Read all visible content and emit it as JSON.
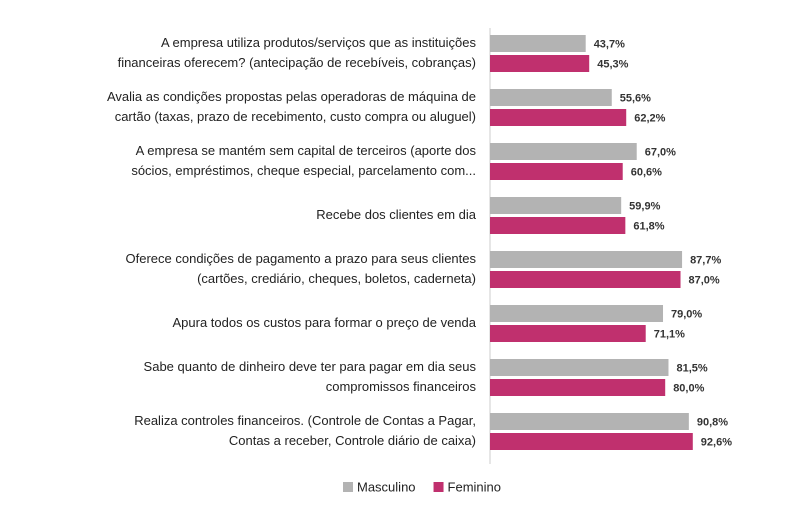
{
  "chart_data": {
    "type": "bar",
    "orientation": "horizontal",
    "categories": [
      [
        "A empresa utiliza produtos/serviços que as instituições",
        "financeiras oferecem? (antecipação de recebíveis, cobranças)"
      ],
      [
        "Avalia as condições propostas pelas operadoras de máquina de",
        "cartão (taxas, prazo de recebimento, custo compra ou aluguel)"
      ],
      [
        "A empresa se mantém sem capital de terceiros (aporte dos",
        "sócios, empréstimos, cheque especial, parcelamento com..."
      ],
      [
        "Recebe dos clientes em dia"
      ],
      [
        "Oferece condições de pagamento a prazo para seus clientes",
        "(cartões, crediário, cheques, boletos, caderneta)"
      ],
      [
        "Apura todos os custos para formar o preço de venda"
      ],
      [
        "Sabe quanto de dinheiro deve ter para pagar em dia seus",
        "compromissos financeiros"
      ],
      [
        "Realiza controles financeiros. (Controle de Contas a Pagar,",
        "Contas a receber, Controle diário de caixa)"
      ]
    ],
    "series": [
      {
        "name": "Masculino",
        "color": "#b3b3b3",
        "values": [
          43.7,
          55.6,
          67.0,
          59.9,
          87.7,
          79.0,
          81.5,
          90.8
        ],
        "value_labels": [
          "43,7%",
          "55,6%",
          "67,0%",
          "59,9%",
          "87,7%",
          "79,0%",
          "81,5%",
          "90,8%"
        ]
      },
      {
        "name": "Feminino",
        "color": "#c0306e",
        "values": [
          45.3,
          62.2,
          60.6,
          61.8,
          87.0,
          71.1,
          80.0,
          92.6
        ],
        "value_labels": [
          "45,3%",
          "62,2%",
          "60,6%",
          "61,8%",
          "87,0%",
          "71,1%",
          "80,0%",
          "92,6%"
        ]
      }
    ],
    "xlim": [
      0,
      100
    ],
    "legend": "bottom"
  }
}
